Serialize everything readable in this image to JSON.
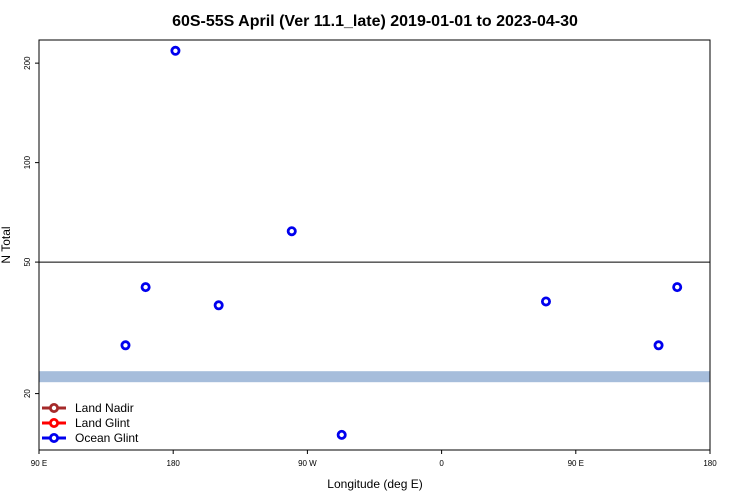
{
  "chart_data": {
    "type": "scatter",
    "title": "60S-55S April (Ver 11.1_late)   2019-01-01 to 2023-04-30",
    "xlabel": "Longitude (deg E)",
    "ylabel": "N Total",
    "x_ticks": [
      {
        "value": 90,
        "label": "90 E"
      },
      {
        "value": 180,
        "label": "180"
      },
      {
        "value": 270,
        "label": "90 W"
      },
      {
        "value": 360,
        "label": "0"
      },
      {
        "value": 450,
        "label": "90 E"
      },
      {
        "value": 540,
        "label": "180"
      }
    ],
    "y_ticks": [
      {
        "value": 20,
        "label": "20"
      },
      {
        "value": 50,
        "label": "50"
      },
      {
        "value": 100,
        "label": "100"
      },
      {
        "value": 200,
        "label": "200"
      }
    ],
    "xlim": [
      90,
      540
    ],
    "ylim": [
      13.5,
      235
    ],
    "yscale": "log",
    "reference_line": {
      "y": 50
    },
    "band": {
      "y": 22.5,
      "color": "#a6bddb"
    },
    "legend": {
      "position": "bottom-left",
      "entries": [
        {
          "name": "Land Nadir",
          "color": "#a52a2a"
        },
        {
          "name": "Land Glint",
          "color": "#ff0000"
        },
        {
          "name": "Ocean Glint",
          "color": "#0000ee"
        }
      ]
    },
    "series": [
      {
        "name": "Ocean Glint",
        "color": "#0000ee",
        "points": [
          {
            "x": 148,
            "y": 28
          },
          {
            "x": 161.5,
            "y": 42
          },
          {
            "x": 181.5,
            "y": 218
          },
          {
            "x": 210.5,
            "y": 37
          },
          {
            "x": 259.5,
            "y": 62
          },
          {
            "x": 293,
            "y": 15
          },
          {
            "x": 430,
            "y": 38
          },
          {
            "x": 505.5,
            "y": 28
          },
          {
            "x": 518,
            "y": 42
          }
        ]
      }
    ]
  }
}
